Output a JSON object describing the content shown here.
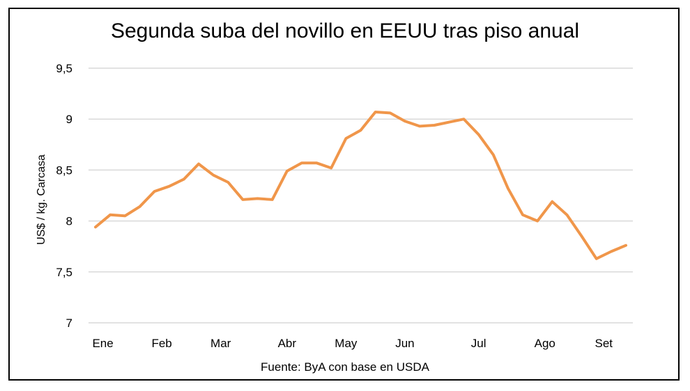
{
  "chart_data": {
    "type": "line",
    "title": "Segunda suba del novillo en EEUU tras piso anual",
    "ylabel": "US$ / kg. Carcasa",
    "source": "Fuente: ByA con base en USDA",
    "ylim": [
      7,
      9.5
    ],
    "yticks": [
      {
        "value": 7,
        "label": "7"
      },
      {
        "value": 7.5,
        "label": "7,5"
      },
      {
        "value": 8,
        "label": "8"
      },
      {
        "value": 8.5,
        "label": "8,5"
      },
      {
        "value": 9,
        "label": "9"
      },
      {
        "value": 9.5,
        "label": "9,5"
      }
    ],
    "grid": true,
    "month_labels": [
      {
        "label": "Ene",
        "index": 0.5
      },
      {
        "label": "Feb",
        "index": 4.5
      },
      {
        "label": "Mar",
        "index": 8.5
      },
      {
        "label": "Abr",
        "index": 13
      },
      {
        "label": "May",
        "index": 17
      },
      {
        "label": "Jun",
        "index": 21
      },
      {
        "label": "Jul",
        "index": 26
      },
      {
        "label": "Ago",
        "index": 30.5
      },
      {
        "label": "Set",
        "index": 34.5
      }
    ],
    "series": [
      {
        "color": "#f0964a",
        "values": [
          7.94,
          8.06,
          8.05,
          8.14,
          8.29,
          8.34,
          8.41,
          8.56,
          8.45,
          8.38,
          8.21,
          8.22,
          8.21,
          8.49,
          8.57,
          8.57,
          8.52,
          8.81,
          8.89,
          9.07,
          9.06,
          8.98,
          8.93,
          8.94,
          8.97,
          9.0,
          8.85,
          8.65,
          8.32,
          8.06,
          8.0,
          8.19,
          8.06,
          7.85,
          7.63,
          7.7,
          7.76
        ]
      }
    ]
  }
}
